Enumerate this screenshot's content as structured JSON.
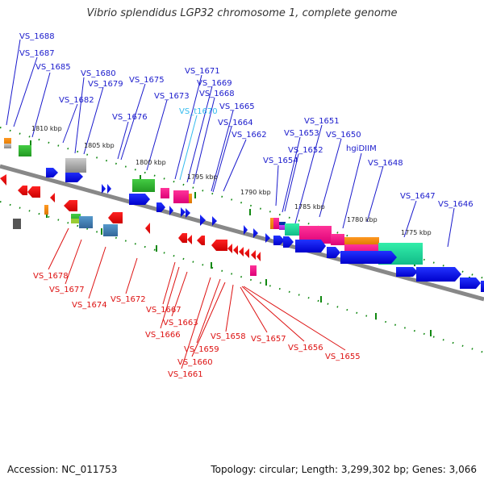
{
  "title": "Vibrio splendidus LGP32 chromosome 1, complete genome",
  "footer": {
    "accession": "Accession: NC_011753",
    "summary": "Topology: circular; Length: 3,299,302 bp; Genes: 3,066"
  },
  "colors": {
    "label_top": "#1a1acc",
    "label_trna": "#33bbee",
    "label_bottom": "#dd1111",
    "backbone": "#888888",
    "tick": "#118811"
  },
  "scale_labels": [
    "1810 kbp",
    "1805 kbp",
    "1800 kbp",
    "1795 kbp",
    "1790 kbp",
    "1785 kbp",
    "1780 kbp",
    "1775 kbp"
  ],
  "top_labels": [
    "VS_1688",
    "VS_1687",
    "VS_1685",
    "VS_1680",
    "VS_1679",
    "VS_1682",
    "VS_1675",
    "VS_1671",
    "VS_1669",
    "VS_1673",
    "VS_1668",
    "VS_1676",
    "VS_t1670",
    "VS_1665",
    "VS_1664",
    "VS_1662",
    "VS_1651",
    "VS_1653",
    "VS_1650",
    "VS_1652",
    "hgiDIIM",
    "VS_1654",
    "VS_1648",
    "VS_1647",
    "VS_1646"
  ],
  "bottom_labels": [
    "VS_1678",
    "VS_1677",
    "VS_1674",
    "VS_1672",
    "VS_1667",
    "VS_1663",
    "VS_1666",
    "VS_1658",
    "VS_1657",
    "VS_1656",
    "VS_1655",
    "VS_1659",
    "VS_1660",
    "VS_1661"
  ]
}
